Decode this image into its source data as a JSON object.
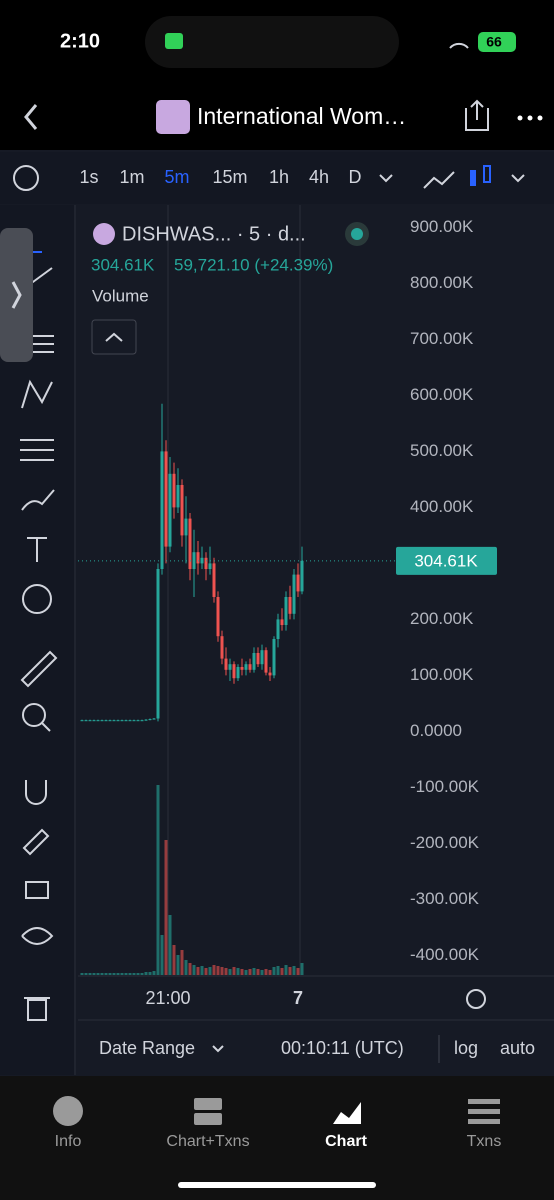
{
  "status_bar": {
    "time": "2:10",
    "battery": "66"
  },
  "header": {
    "title": "International Wom…"
  },
  "timeframes": [
    "1s",
    "1m",
    "5m",
    "15m",
    "1h",
    "4h",
    "D"
  ],
  "chart_data": {
    "type": "candlestick",
    "symbol": "DISHWAS... · 5 · d...",
    "legend_price": "304.61K",
    "legend_change": "59,721.10 (+24.39%)",
    "volume_label": "Volume",
    "last_price_label": "304.61K",
    "up_color": "#26a69a",
    "down_color": "#ef5350",
    "ohlc": [
      [
        20000,
        21000,
        19000,
        20000
      ],
      [
        20000,
        21000,
        19000,
        20000
      ],
      [
        20000,
        21000,
        19000,
        20000
      ],
      [
        20000,
        21000,
        19000,
        20000
      ],
      [
        20000,
        21000,
        19000,
        20000
      ],
      [
        20000,
        21000,
        19000,
        20000
      ],
      [
        20000,
        21000,
        19000,
        20000
      ],
      [
        20000,
        21000,
        19000,
        20000
      ],
      [
        20000,
        21000,
        19000,
        20000
      ],
      [
        20000,
        21000,
        19000,
        20000
      ],
      [
        20000,
        21000,
        19000,
        20000
      ],
      [
        20000,
        21000,
        19000,
        20000
      ],
      [
        20000,
        21000,
        19000,
        20000
      ],
      [
        20000,
        21000,
        19000,
        20000
      ],
      [
        20000,
        21000,
        19000,
        20000
      ],
      [
        20000,
        21000,
        19000,
        20000
      ],
      [
        20000,
        22000,
        19000,
        21000
      ],
      [
        21000,
        23000,
        20000,
        22000
      ],
      [
        22000,
        24000,
        21000,
        23000
      ],
      [
        23000,
        300000,
        18000,
        290000
      ],
      [
        290000,
        585000,
        280000,
        500000
      ],
      [
        500000,
        520000,
        300000,
        330000
      ],
      [
        330000,
        490000,
        320000,
        460000
      ],
      [
        460000,
        480000,
        380000,
        400000
      ],
      [
        400000,
        470000,
        390000,
        440000
      ],
      [
        440000,
        450000,
        330000,
        350000
      ],
      [
        350000,
        420000,
        300000,
        380000
      ],
      [
        380000,
        390000,
        270000,
        290000
      ],
      [
        290000,
        360000,
        240000,
        320000
      ],
      [
        320000,
        340000,
        280000,
        300000
      ],
      [
        300000,
        330000,
        290000,
        310000
      ],
      [
        310000,
        320000,
        270000,
        290000
      ],
      [
        290000,
        330000,
        280000,
        300000
      ],
      [
        300000,
        310000,
        230000,
        240000
      ],
      [
        240000,
        250000,
        160000,
        170000
      ],
      [
        170000,
        180000,
        120000,
        130000
      ],
      [
        130000,
        150000,
        100000,
        110000
      ],
      [
        110000,
        130000,
        90000,
        120000
      ],
      [
        120000,
        125000,
        85000,
        95000
      ],
      [
        95000,
        120000,
        90000,
        115000
      ],
      [
        115000,
        130000,
        100000,
        110000
      ],
      [
        110000,
        125000,
        100000,
        120000
      ],
      [
        120000,
        130000,
        105000,
        110000
      ],
      [
        110000,
        150000,
        105000,
        140000
      ],
      [
        140000,
        150000,
        115000,
        120000
      ],
      [
        120000,
        155000,
        110000,
        145000
      ],
      [
        145000,
        150000,
        100000,
        105000
      ],
      [
        105000,
        115000,
        90000,
        100000
      ],
      [
        100000,
        170000,
        95000,
        165000
      ],
      [
        165000,
        210000,
        150000,
        200000
      ],
      [
        200000,
        220000,
        180000,
        190000
      ],
      [
        190000,
        250000,
        180000,
        240000
      ],
      [
        240000,
        260000,
        200000,
        210000
      ],
      [
        210000,
        290000,
        200000,
        280000
      ],
      [
        280000,
        300000,
        240000,
        250000
      ],
      [
        250000,
        330000,
        245000,
        304610
      ]
    ],
    "volume": [
      2,
      2,
      2,
      2,
      2,
      2,
      2,
      2,
      2,
      2,
      2,
      2,
      2,
      2,
      2,
      2,
      3,
      3,
      4,
      190,
      40,
      135,
      60,
      30,
      20,
      25,
      15,
      12,
      10,
      8,
      9,
      7,
      8,
      10,
      9,
      8,
      7,
      6,
      8,
      7,
      6,
      5,
      6,
      7,
      6,
      5,
      6,
      5,
      8,
      9,
      7,
      10,
      8,
      9,
      7,
      12
    ],
    "ylim": [
      -435000,
      940000
    ],
    "yticks": [
      {
        "value": 900000,
        "label": "900.00K"
      },
      {
        "value": 800000,
        "label": "800.00K"
      },
      {
        "value": 700000,
        "label": "700.00K"
      },
      {
        "value": 600000,
        "label": "600.00K"
      },
      {
        "value": 500000,
        "label": "500.00K"
      },
      {
        "value": 400000,
        "label": "400.00K"
      },
      {
        "value": 200000,
        "label": "200.00K"
      },
      {
        "value": 100000,
        "label": "100.00K"
      },
      {
        "value": 0,
        "label": "0.0000"
      },
      {
        "value": -100000,
        "label": "-100.00K"
      },
      {
        "value": -200000,
        "label": "-200.00K"
      },
      {
        "value": -300000,
        "label": "-300.00K"
      },
      {
        "value": -400000,
        "label": "-400.00K"
      }
    ],
    "x_tick_labels": [
      "21:00",
      "7"
    ]
  },
  "footer": {
    "date_range": "Date Range",
    "time": "00:10:11 (UTC)",
    "log": "log",
    "auto": "auto"
  },
  "tabs": [
    "Info",
    "Chart+Txns",
    "Chart",
    "Txns"
  ]
}
